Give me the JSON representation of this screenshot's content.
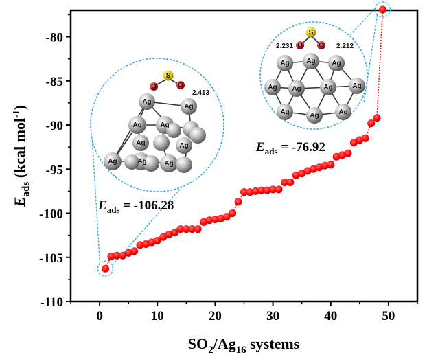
{
  "chart_data": {
    "type": "scatter",
    "xlabel": {
      "main": "SO",
      "sub1": "2",
      "mid": "/Ag",
      "sub2": "16",
      "end": " systems"
    },
    "ylabel": {
      "main": "E",
      "sub": "ads",
      "unit": " (kcal mol",
      "sup": "-1",
      "close": ")"
    },
    "xlim": [
      -5,
      55
    ],
    "ylim": [
      -110,
      -77
    ],
    "xticks": [
      0,
      10,
      20,
      30,
      40,
      50
    ],
    "yticks": [
      -110,
      -105,
      -100,
      -95,
      -90,
      -85,
      -80
    ],
    "series": [
      {
        "color": "#ff0000",
        "x": [
          1,
          2,
          3,
          4,
          5,
          6,
          7,
          8,
          9,
          10,
          11,
          12,
          13,
          14,
          15,
          16,
          17,
          18,
          19,
          20,
          21,
          22,
          23,
          24,
          25,
          26,
          27,
          28,
          29,
          30,
          31,
          32,
          33,
          34,
          35,
          36,
          37,
          38,
          39,
          40,
          41,
          42,
          43,
          44,
          45,
          46,
          47,
          48,
          49
        ],
        "y": [
          -106.28,
          -104.9,
          -104.8,
          -104.8,
          -104.5,
          -104.3,
          -103.6,
          -103.5,
          -103.3,
          -103.1,
          -102.7,
          -102.4,
          -102.2,
          -101.8,
          -101.8,
          -101.8,
          -101.8,
          -101.0,
          -100.8,
          -100.7,
          -100.6,
          -100.4,
          -100.0,
          -98.7,
          -97.6,
          -97.6,
          -97.5,
          -97.4,
          -97.4,
          -97.3,
          -97.3,
          -96.5,
          -96.5,
          -95.7,
          -95.5,
          -95.2,
          -95.0,
          -94.8,
          -94.6,
          -94.5,
          -93.6,
          -93.4,
          -93.2,
          -92.0,
          -91.7,
          -91.5,
          -89.8,
          -89.2,
          -76.92
        ]
      }
    ],
    "annotations": [
      {
        "label_main": "E",
        "label_sub": "ads",
        "value": " = -106.28",
        "point_index": 0
      },
      {
        "label_main": "E",
        "label_sub": "ads",
        "value": " = -76.92",
        "point_index": 48
      }
    ],
    "structure_left": {
      "atom_ag": "Ag",
      "atom_s": "S",
      "atom_o": "O",
      "distance": "2.413"
    },
    "structure_right": {
      "atom_ag": "Ag",
      "atom_s": "S",
      "atom_o": "O",
      "distance_left": "2.231",
      "distance_right": "2.212"
    }
  },
  "colors": {
    "marker": "#ff0000",
    "callout": "#33aadd",
    "atom_ag": "#9a9a9a",
    "atom_s": "#e8d000",
    "atom_o": "#dd2222"
  }
}
